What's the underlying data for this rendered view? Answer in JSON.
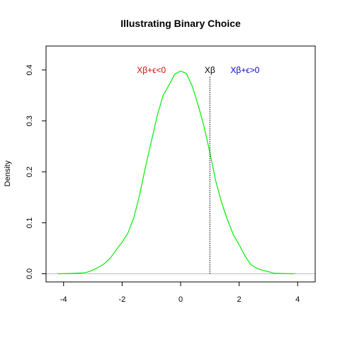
{
  "chart_data": {
    "type": "line",
    "title": "Illustrating Binary Choice",
    "xlabel": "",
    "ylabel": "Density",
    "xlim": [
      -4.6,
      4.6
    ],
    "ylim": [
      -0.016,
      0.447
    ],
    "x_ticks": [
      -4,
      -2,
      0,
      2,
      4
    ],
    "x_tick_labels": [
      "-4",
      "-2",
      "0",
      "2",
      "4"
    ],
    "y_ticks": [
      0.0,
      0.1,
      0.2,
      0.3,
      0.4
    ],
    "y_tick_labels": [
      "0.0",
      "0.1",
      "0.2",
      "0.3",
      "0.4"
    ],
    "grid": false,
    "series": [
      {
        "color": "#00ee00",
        "x": [
          -4.2,
          -3.8,
          -3.4,
          -3.2,
          -3.0,
          -2.8,
          -2.6,
          -2.4,
          -2.2,
          -2.0,
          -1.8,
          -1.6,
          -1.4,
          -1.2,
          -1.0,
          -0.8,
          -0.6,
          -0.4,
          -0.2,
          0.0,
          0.2,
          0.4,
          0.6,
          0.8,
          1.0,
          1.2,
          1.4,
          1.6,
          1.8,
          2.0,
          2.2,
          2.4,
          2.6,
          2.8,
          3.0,
          3.2,
          3.6,
          3.9
        ],
        "values": [
          0.0,
          0.0005,
          0.0015,
          0.003,
          0.007,
          0.013,
          0.02,
          0.031,
          0.047,
          0.062,
          0.08,
          0.11,
          0.155,
          0.21,
          0.26,
          0.31,
          0.35,
          0.37,
          0.392,
          0.398,
          0.393,
          0.368,
          0.331,
          0.289,
          0.238,
          0.182,
          0.14,
          0.106,
          0.077,
          0.057,
          0.035,
          0.018,
          0.011,
          0.007,
          0.004,
          0.001,
          0.0003,
          0.0
        ]
      }
    ],
    "reference_line": {
      "x": 1,
      "y_top": 0.388,
      "color": "#000000",
      "style": "dotted"
    },
    "baseline": {
      "y": 0,
      "color": "#bebebe"
    },
    "annotations": [
      {
        "text": "Xβ+ϵ<0",
        "x": -1.0,
        "y": 0.4,
        "color": "#dd0000"
      },
      {
        "text": "Xβ",
        "x": 1.0,
        "y": 0.4,
        "color": "#000000"
      },
      {
        "text": "Xβ+ϵ>0",
        "x": 2.2,
        "y": 0.4,
        "color": "#0000cc"
      }
    ]
  }
}
